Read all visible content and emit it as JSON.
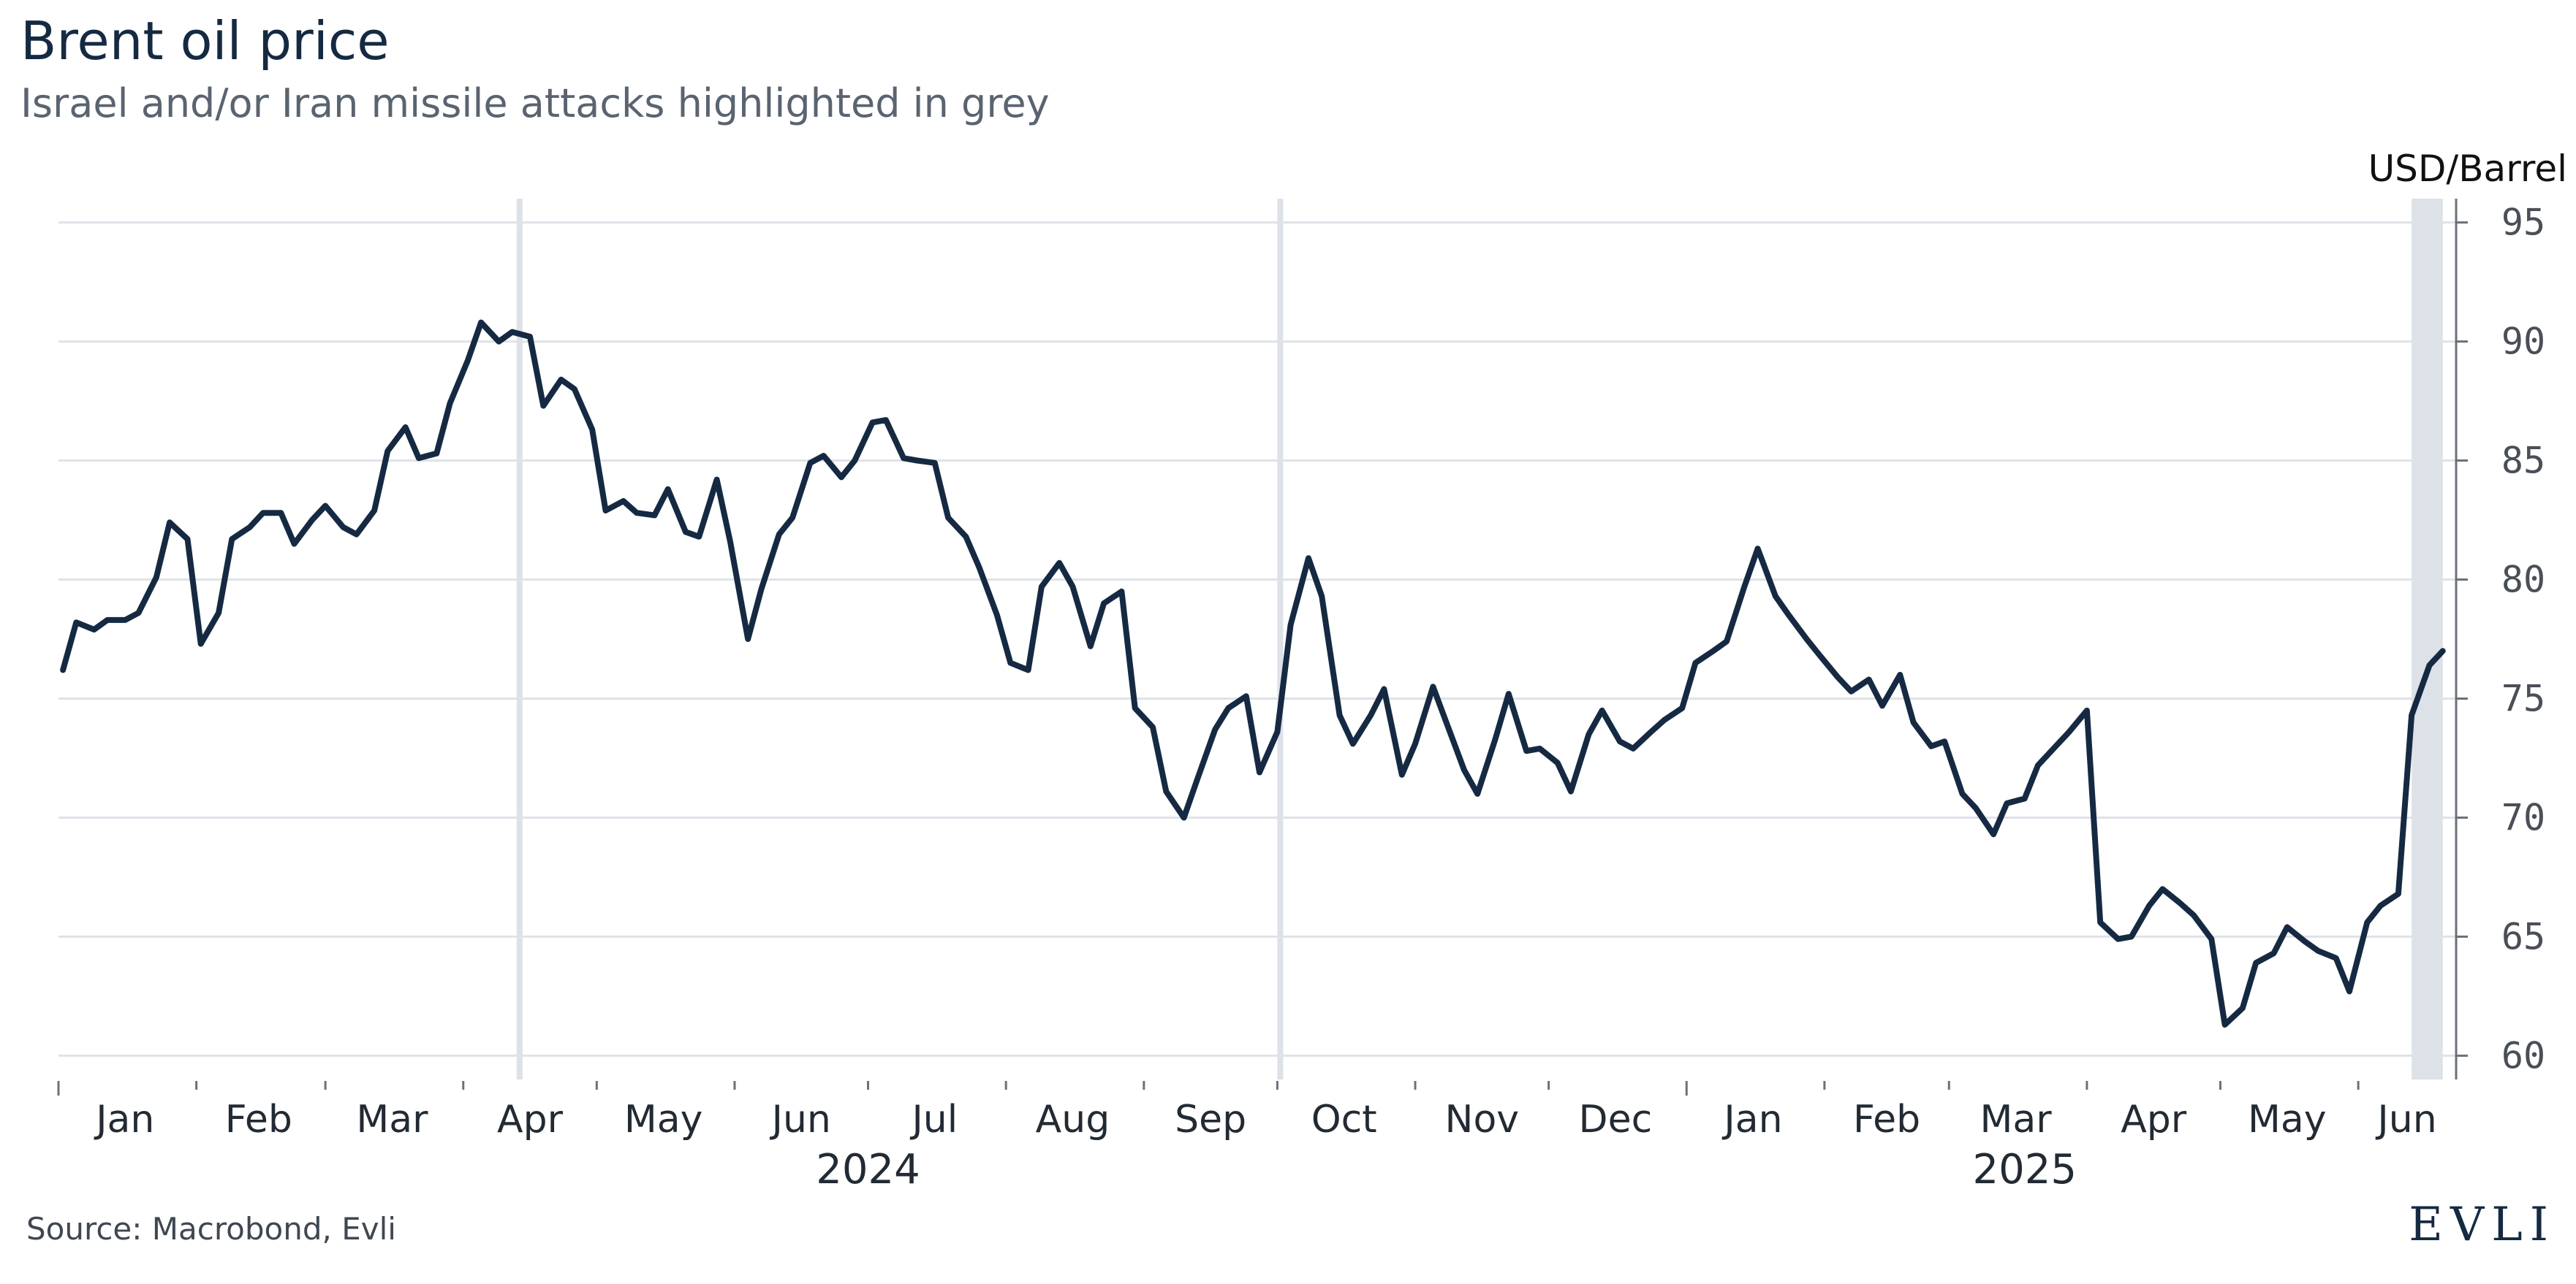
{
  "header": {
    "title": "Brent oil price",
    "subtitle": "Israel and/or Iran missile attacks highlighted in grey"
  },
  "footer": {
    "source": "Source: Macrobond, Evli",
    "logo_text": "EVLI"
  },
  "colors": {
    "line": "#152a42",
    "highlight": "#dde1e8",
    "grid": "#dfe2e8",
    "axis": "#6b7079"
  },
  "chart_data": {
    "type": "line",
    "title": "Brent oil price",
    "subtitle": "Israel and/or Iran missile attacks highlighted in grey",
    "ylabel": "USD/Barrel",
    "y_axis_side": "right",
    "ylim": [
      59,
      96
    ],
    "yticks": [
      60,
      65,
      70,
      75,
      80,
      85,
      90,
      95
    ],
    "grid": "horizontal",
    "xlim": [
      "2024-01-01",
      "2025-06-23"
    ],
    "x_month_labels": [
      {
        "label": "Jan",
        "date": "2024-01-16"
      },
      {
        "label": "Feb",
        "date": "2024-02-15"
      },
      {
        "label": "Mar",
        "date": "2024-03-16"
      },
      {
        "label": "Apr",
        "date": "2024-04-16"
      },
      {
        "label": "May",
        "date": "2024-05-16"
      },
      {
        "label": "Jun",
        "date": "2024-06-16"
      },
      {
        "label": "Jul",
        "date": "2024-07-16"
      },
      {
        "label": "Aug",
        "date": "2024-08-16"
      },
      {
        "label": "Sep",
        "date": "2024-09-16"
      },
      {
        "label": "Oct",
        "date": "2024-10-16"
      },
      {
        "label": "Nov",
        "date": "2024-11-16"
      },
      {
        "label": "Dec",
        "date": "2024-12-16"
      },
      {
        "label": "Jan",
        "date": "2025-01-16"
      },
      {
        "label": "Feb",
        "date": "2025-02-15"
      },
      {
        "label": "Mar",
        "date": "2025-03-16"
      },
      {
        "label": "Apr",
        "date": "2025-04-16"
      },
      {
        "label": "May",
        "date": "2025-05-16"
      },
      {
        "label": "Jun",
        "date": "2025-06-12"
      }
    ],
    "x_year_labels": [
      {
        "label": "2024",
        "date": "2024-07-01"
      },
      {
        "label": "2025",
        "date": "2025-03-18"
      }
    ],
    "x_month_ticks": [
      "2024-01-01",
      "2024-02-01",
      "2024-03-01",
      "2024-04-01",
      "2024-05-01",
      "2024-06-01",
      "2024-07-01",
      "2024-08-01",
      "2024-09-01",
      "2024-10-01",
      "2024-11-01",
      "2024-12-01",
      "2025-01-01",
      "2025-02-01",
      "2025-03-01",
      "2025-04-01",
      "2025-05-01",
      "2025-06-01"
    ],
    "highlights": [
      {
        "start": "2024-04-13",
        "end": "2024-04-14"
      },
      {
        "start": "2024-10-01",
        "end": "2024-10-02"
      },
      {
        "start": "2025-06-13",
        "end": "2025-06-20"
      }
    ],
    "series": [
      {
        "x": [
          "2024-01-02",
          "2024-01-05",
          "2024-01-09",
          "2024-01-12",
          "2024-01-16",
          "2024-01-19",
          "2024-01-23",
          "2024-01-26",
          "2024-01-30",
          "2024-02-02",
          "2024-02-06",
          "2024-02-09",
          "2024-02-13",
          "2024-02-16",
          "2024-02-20",
          "2024-02-23",
          "2024-02-27",
          "2024-03-01",
          "2024-03-05",
          "2024-03-08",
          "2024-03-12",
          "2024-03-15",
          "2024-03-19",
          "2024-03-22",
          "2024-03-26",
          "2024-03-29",
          "2024-04-02",
          "2024-04-05",
          "2024-04-09",
          "2024-04-12",
          "2024-04-16",
          "2024-04-19",
          "2024-04-23",
          "2024-04-26",
          "2024-04-30",
          "2024-05-03",
          "2024-05-07",
          "2024-05-10",
          "2024-05-14",
          "2024-05-17",
          "2024-05-21",
          "2024-05-24",
          "2024-05-28",
          "2024-05-31",
          "2024-06-04",
          "2024-06-07",
          "2024-06-11",
          "2024-06-14",
          "2024-06-18",
          "2024-06-21",
          "2024-06-25",
          "2024-06-28",
          "2024-07-02",
          "2024-07-05",
          "2024-07-09",
          "2024-07-12",
          "2024-07-16",
          "2024-07-19",
          "2024-07-23",
          "2024-07-26",
          "2024-07-30",
          "2024-08-02",
          "2024-08-06",
          "2024-08-09",
          "2024-08-13",
          "2024-08-16",
          "2024-08-20",
          "2024-08-23",
          "2024-08-27",
          "2024-08-30",
          "2024-09-03",
          "2024-09-06",
          "2024-09-10",
          "2024-09-13",
          "2024-09-17",
          "2024-09-20",
          "2024-09-24",
          "2024-09-27",
          "2024-10-01",
          "2024-10-04",
          "2024-10-08",
          "2024-10-11",
          "2024-10-15",
          "2024-10-18",
          "2024-10-22",
          "2024-10-25",
          "2024-10-29",
          "2024-11-01",
          "2024-11-05",
          "2024-11-08",
          "2024-11-12",
          "2024-11-15",
          "2024-11-19",
          "2024-11-22",
          "2024-11-26",
          "2024-11-29",
          "2024-12-03",
          "2024-12-06",
          "2024-12-10",
          "2024-12-13",
          "2024-12-17",
          "2024-12-20",
          "2024-12-24",
          "2024-12-27",
          "2024-12-31",
          "2025-01-03",
          "2025-01-07",
          "2025-01-10",
          "2025-01-14",
          "2025-01-17",
          "2025-01-21",
          "2025-01-24",
          "2025-01-28",
          "2025-01-31",
          "2025-02-04",
          "2025-02-07",
          "2025-02-11",
          "2025-02-14",
          "2025-02-18",
          "2025-02-21",
          "2025-02-25",
          "2025-02-28",
          "2025-03-04",
          "2025-03-07",
          "2025-03-11",
          "2025-03-14",
          "2025-03-18",
          "2025-03-21",
          "2025-03-25",
          "2025-03-28",
          "2025-04-01",
          "2025-04-04",
          "2025-04-08",
          "2025-04-11",
          "2025-04-15",
          "2025-04-18",
          "2025-04-22",
          "2025-04-25",
          "2025-04-29",
          "2025-05-02",
          "2025-05-06",
          "2025-05-09",
          "2025-05-13",
          "2025-05-16",
          "2025-05-20",
          "2025-05-23",
          "2025-05-27",
          "2025-05-30",
          "2025-06-03",
          "2025-06-06",
          "2025-06-10",
          "2025-06-13",
          "2025-06-17",
          "2025-06-20"
        ],
        "y": [
          76.2,
          78.2,
          77.9,
          78.3,
          78.3,
          78.6,
          80.1,
          82.4,
          81.7,
          77.3,
          78.6,
          81.7,
          82.2,
          82.8,
          82.8,
          81.5,
          82.5,
          83.1,
          82.2,
          81.9,
          82.9,
          85.4,
          86.4,
          85.1,
          85.3,
          87.4,
          89.2,
          90.8,
          90.0,
          90.4,
          90.2,
          87.3,
          88.4,
          88.0,
          86.3,
          82.9,
          83.3,
          82.8,
          82.7,
          83.8,
          82.0,
          81.8,
          84.2,
          81.6,
          77.5,
          79.6,
          81.9,
          82.6,
          84.9,
          85.2,
          84.3,
          85.0,
          86.6,
          86.7,
          85.1,
          85.0,
          84.9,
          82.6,
          81.8,
          80.5,
          78.5,
          76.5,
          76.2,
          79.7,
          80.7,
          79.7,
          77.2,
          79.0,
          79.5,
          74.6,
          73.8,
          71.1,
          70.0,
          71.6,
          73.7,
          74.6,
          75.1,
          71.9,
          73.6,
          78.1,
          80.9,
          79.3,
          74.3,
          73.1,
          74.3,
          75.4,
          71.8,
          73.1,
          75.5,
          74.0,
          72.0,
          71.0,
          73.3,
          75.2,
          72.8,
          72.9,
          72.3,
          71.1,
          73.5,
          74.5,
          73.2,
          72.9,
          73.6,
          74.1,
          74.6,
          76.5,
          77.0,
          77.4,
          79.7,
          81.3,
          79.3,
          78.5,
          77.5,
          76.8,
          75.9,
          75.3,
          75.8,
          74.7,
          76.0,
          74.0,
          73.0,
          73.2,
          71.0,
          70.4,
          69.3,
          70.6,
          70.8,
          72.2,
          73.0,
          73.6,
          74.5,
          65.6,
          64.9,
          65.0,
          66.3,
          67.0,
          66.4,
          65.9,
          64.9,
          61.3,
          62.0,
          63.9,
          64.3,
          65.4,
          64.8,
          64.4,
          64.1,
          62.7,
          65.6,
          66.3,
          66.8,
          74.3,
          76.4,
          77.0
        ]
      }
    ]
  }
}
